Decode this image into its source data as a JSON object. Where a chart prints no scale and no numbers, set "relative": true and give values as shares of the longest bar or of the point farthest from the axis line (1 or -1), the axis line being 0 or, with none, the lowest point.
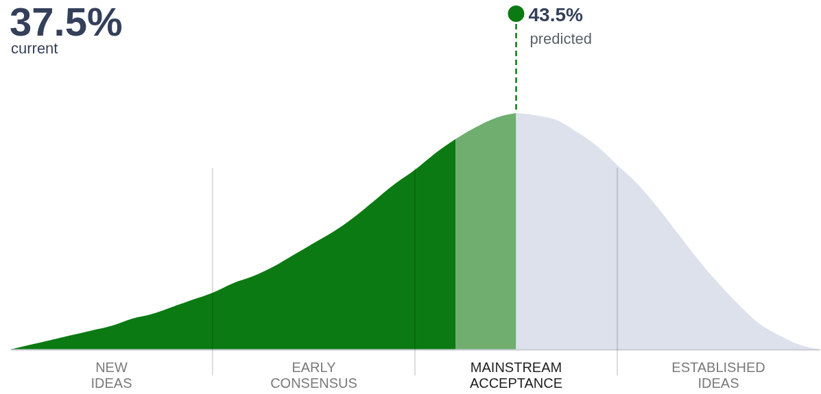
{
  "chart_data": {
    "type": "area",
    "relative": true,
    "grid": "x",
    "title": "37.5%",
    "subtitle": "current",
    "annotations": [
      "43.5%",
      "predicted",
      "NEW\nIDEAS",
      "EARLY\nCONSENSUS",
      "MAINSTREAM\nACCEPTANCE",
      "ESTABLISHED\nIDEAS"
    ],
    "categories": [
      null,
      null,
      null,
      null,
      null,
      null,
      null,
      null,
      null,
      null,
      null,
      null,
      null,
      null,
      null,
      null,
      null,
      null,
      null,
      null,
      null,
      null,
      null,
      null,
      null,
      null,
      null,
      null,
      null,
      null,
      null,
      null,
      null,
      null,
      null,
      null,
      null,
      null,
      null,
      null,
      null
    ],
    "series": [
      {
        "color": "#0b7a12",
        "values": [
          0,
          0.02,
          0.04,
          0.06,
          0.08,
          0.1,
          0.13,
          0.15,
          0.18,
          0.21,
          0.24,
          0.28,
          0.31,
          0.35,
          0.4,
          0.45,
          0.5,
          0.56,
          0.63,
          0.7,
          0.76,
          0.83,
          0.89,
          null,
          null,
          null,
          null,
          null,
          null,
          null,
          null,
          null,
          null,
          null,
          null,
          null,
          null,
          null,
          null,
          null,
          null
        ]
      },
      {
        "color": "#6fae6f",
        "values": [
          null,
          null,
          null,
          null,
          null,
          null,
          null,
          null,
          null,
          null,
          null,
          null,
          null,
          null,
          null,
          null,
          null,
          null,
          null,
          null,
          null,
          null,
          0.89,
          0.94,
          0.98,
          1,
          null,
          null,
          null,
          null,
          null,
          null,
          null,
          null,
          null,
          null,
          null,
          null,
          null,
          null,
          null
        ]
      },
      {
        "color": "#dde1ec",
        "values": [
          null,
          null,
          null,
          null,
          null,
          null,
          null,
          null,
          null,
          null,
          null,
          null,
          null,
          null,
          null,
          null,
          null,
          null,
          null,
          null,
          null,
          null,
          null,
          null,
          null,
          1,
          0.99,
          0.97,
          0.92,
          0.86,
          0.78,
          0.7,
          0.6,
          0.49,
          0.38,
          0.28,
          0.19,
          0.11,
          0.06,
          0.02,
          0
        ]
      }
    ]
  }
}
